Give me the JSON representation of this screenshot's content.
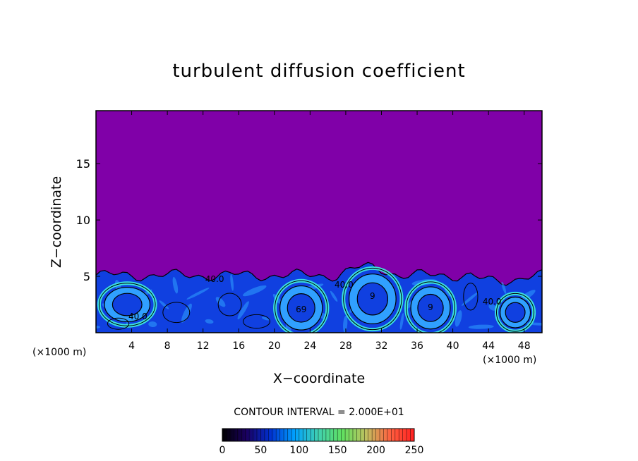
{
  "chart_data": {
    "type": "heatmap",
    "title": "turbulent diffusion coefficient",
    "xlabel": "X−coordinate",
    "ylabel": "Z−coordinate",
    "x_unit_label": "(×1000 m)",
    "xlim": [
      0,
      50
    ],
    "ylim": [
      0,
      19.7
    ],
    "x_ticks": [
      4,
      8,
      12,
      16,
      20,
      24,
      28,
      32,
      36,
      40,
      44,
      48
    ],
    "y_ticks": [
      5,
      10,
      15
    ],
    "background_value": 0,
    "background_color": "#8000a8",
    "contour_labels": [
      {
        "text": "40.0",
        "x": 4.7,
        "z": 1.2
      },
      {
        "text": "40.0",
        "x": 13.3,
        "z": 4.5
      },
      {
        "text": "40.0",
        "x": 27.8,
        "z": 4.0
      },
      {
        "text": "69",
        "x": 23.0,
        "z": 1.8
      },
      {
        "text": "9",
        "x": 31.0,
        "z": 3.0
      },
      {
        "text": "9",
        "x": 37.5,
        "z": 2.0
      },
      {
        "text": "40.0",
        "x": 44.4,
        "z": 2.5
      }
    ],
    "eddies": [
      {
        "x": 3.5,
        "z": 2.5,
        "rx": 3.0,
        "rz": 1.8
      },
      {
        "x": 23.0,
        "z": 2.2,
        "rx": 2.8,
        "rz": 2.3
      },
      {
        "x": 31.0,
        "z": 3.0,
        "rx": 3.1,
        "rz": 2.6
      },
      {
        "x": 37.5,
        "z": 2.2,
        "rx": 2.6,
        "rz": 2.2
      },
      {
        "x": 47.0,
        "z": 1.8,
        "rx": 2.0,
        "rz": 1.6
      }
    ],
    "contour_interval_text": "CONTOUR INTERVAL = 2.000E+01",
    "colorbar": {
      "min": 0,
      "max": 250,
      "tick_labels": [
        "0",
        "50",
        "100",
        "150",
        "200",
        "250"
      ],
      "stops": [
        "#000000",
        "#1a0060",
        "#0030d0",
        "#00a0ff",
        "#40d0b0",
        "#60e060",
        "#c0c060",
        "#ff6040",
        "#ff2020"
      ]
    },
    "colors": {
      "field_low": "#1040e0",
      "field_mid": "#30a0ff",
      "field_high": "#40f0e0",
      "contour": "#000000"
    }
  }
}
